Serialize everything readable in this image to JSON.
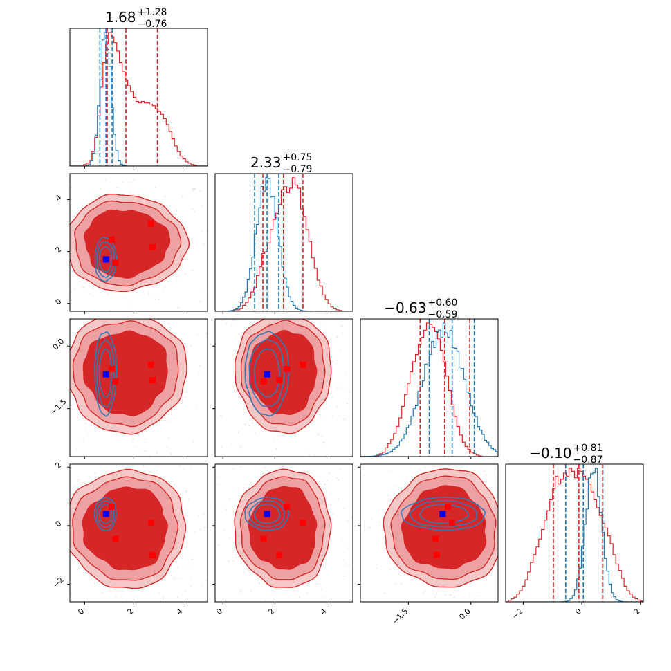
{
  "chart_data": {
    "type": "corner",
    "parameters": 4,
    "colors": {
      "primary": "#d62728",
      "secondary": "#1f77b4",
      "truth_primary": "#ff0000",
      "truth_secondary": "#0000ff",
      "fill_inner": "#d62728",
      "fill_outer": "#ec9a9b"
    },
    "titles": [
      {
        "median": "1.68",
        "plus": "+1.28",
        "minus": "−0.76"
      },
      {
        "median": "2.33",
        "plus": "+0.75",
        "minus": "−0.79"
      },
      {
        "median": "−0.63",
        "plus": "+0.60",
        "minus": "−0.59"
      },
      {
        "median": "−0.10",
        "plus": "+0.81",
        "minus": "−0.87"
      }
    ],
    "ranges": [
      [
        -0.6,
        5.0
      ],
      [
        -0.3,
        5.0
      ],
      [
        -2.65,
        0.65
      ],
      [
        -2.6,
        2.1
      ]
    ],
    "ticks": [
      {
        "values": [
          0,
          2,
          4
        ],
        "labels": [
          "0",
          "2",
          "4"
        ]
      },
      {
        "values": [
          0,
          2,
          4
        ],
        "labels": [
          "0",
          "2",
          "4"
        ]
      },
      {
        "values": [
          -1.5,
          0.0
        ],
        "labels": [
          "−1.5",
          "0.0"
        ]
      },
      {
        "values": [
          -2,
          0,
          2
        ],
        "labels": [
          "−2",
          "0",
          "2"
        ]
      }
    ],
    "quantiles_primary": [
      [
        0.92,
        1.68,
        2.96
      ],
      [
        1.54,
        2.33,
        3.08
      ],
      [
        -1.22,
        -0.63,
        -0.03
      ],
      [
        -0.97,
        -0.1,
        0.71
      ]
    ],
    "quantiles_secondary": [
      [
        0.62,
        0.87,
        1.12
      ],
      [
        1.22,
        1.7,
        2.15
      ],
      [
        -1.0,
        -0.45,
        0.08
      ],
      [
        -0.55,
        0.05,
        0.72
      ]
    ],
    "secondary_centers": [
      0.85,
      1.7,
      -0.65,
      0.4
    ],
    "secondary_sigmas": [
      0.22,
      0.42,
      0.5,
      0.28
    ],
    "truth_primary_points": [
      {
        "x": 1.1,
        "y": 2.46
      },
      {
        "x": 1.25,
        "y": 1.57
      },
      {
        "x": 2.7,
        "y": 3.08
      },
      {
        "x": 2.77,
        "y": 2.17
      }
    ],
    "truth_secondary_point": {
      "x": 0.87,
      "y": 1.68
    },
    "truth_points_all": [
      [
        1.1,
        1.25,
        2.7,
        2.77
      ],
      [
        2.46,
        1.57,
        3.08,
        2.17
      ],
      [
        -0.55,
        -0.85,
        -0.45,
        -0.82
      ],
      [
        0.65,
        -0.45,
        0.1,
        -1.0
      ]
    ],
    "truth_blue_all": [
      0.87,
      1.7,
      -0.68,
      0.4
    ],
    "hist_primary": [
      [
        0,
        0,
        0,
        0,
        0,
        0.01,
        0.02,
        0.04,
        0.1,
        0.2,
        0.35,
        0.55,
        0.72,
        0.85,
        0.93,
        0.9,
        0.86,
        0.8,
        0.72,
        0.66,
        0.6,
        0.56,
        0.52,
        0.48,
        0.45,
        0.44,
        0.45,
        0.44,
        0.44,
        0.43,
        0.42,
        0.4,
        0.38,
        0.36,
        0.33,
        0.29,
        0.24,
        0.19,
        0.14,
        0.1,
        0.07,
        0.05,
        0.03,
        0.02,
        0.01,
        0.005,
        0,
        0,
        0,
        0
      ],
      [
        0,
        0,
        0,
        0,
        0,
        0,
        0.005,
        0.01,
        0.01,
        0.02,
        0.04,
        0.06,
        0.09,
        0.13,
        0.16,
        0.24,
        0.3,
        0.39,
        0.4,
        0.46,
        0.55,
        0.62,
        0.66,
        0.72,
        0.82,
        0.84,
        0.8,
        0.83,
        0.9,
        0.85,
        0.83,
        0.69,
        0.64,
        0.55,
        0.47,
        0.36,
        0.29,
        0.21,
        0.17,
        0.11,
        0.08,
        0.05,
        0.03,
        0.02,
        0.01,
        0.005,
        0,
        0,
        0,
        0
      ],
      [
        0,
        0,
        0,
        0,
        0,
        0.005,
        0.01,
        0.02,
        0.03,
        0.06,
        0.09,
        0.12,
        0.16,
        0.21,
        0.27,
        0.35,
        0.43,
        0.51,
        0.59,
        0.66,
        0.71,
        0.78,
        0.83,
        0.88,
        0.93,
        0.92,
        0.9,
        0.87,
        0.82,
        0.74,
        0.66,
        0.56,
        0.46,
        0.36,
        0.28,
        0.21,
        0.15,
        0.1,
        0.07,
        0.05,
        0.03,
        0.02,
        0.01,
        0.005,
        0,
        0,
        0,
        0,
        0,
        0
      ],
      [
        0,
        0.01,
        0.02,
        0.03,
        0.05,
        0.07,
        0.1,
        0.14,
        0.19,
        0.25,
        0.3,
        0.35,
        0.4,
        0.46,
        0.52,
        0.58,
        0.65,
        0.72,
        0.8,
        0.75,
        0.78,
        0.82,
        0.8,
        0.85,
        0.83,
        0.79,
        0.85,
        0.83,
        0.8,
        0.78,
        0.75,
        0.7,
        0.65,
        0.6,
        0.55,
        0.5,
        0.47,
        0.42,
        0.37,
        0.3,
        0.24,
        0.2,
        0.15,
        0.1,
        0.07,
        0.05,
        0.03,
        0.02,
        0.01,
        0.005
      ]
    ],
    "hist_secondary_peak": [
      0.98,
      0.95,
      1.0,
      1.0
    ]
  }
}
